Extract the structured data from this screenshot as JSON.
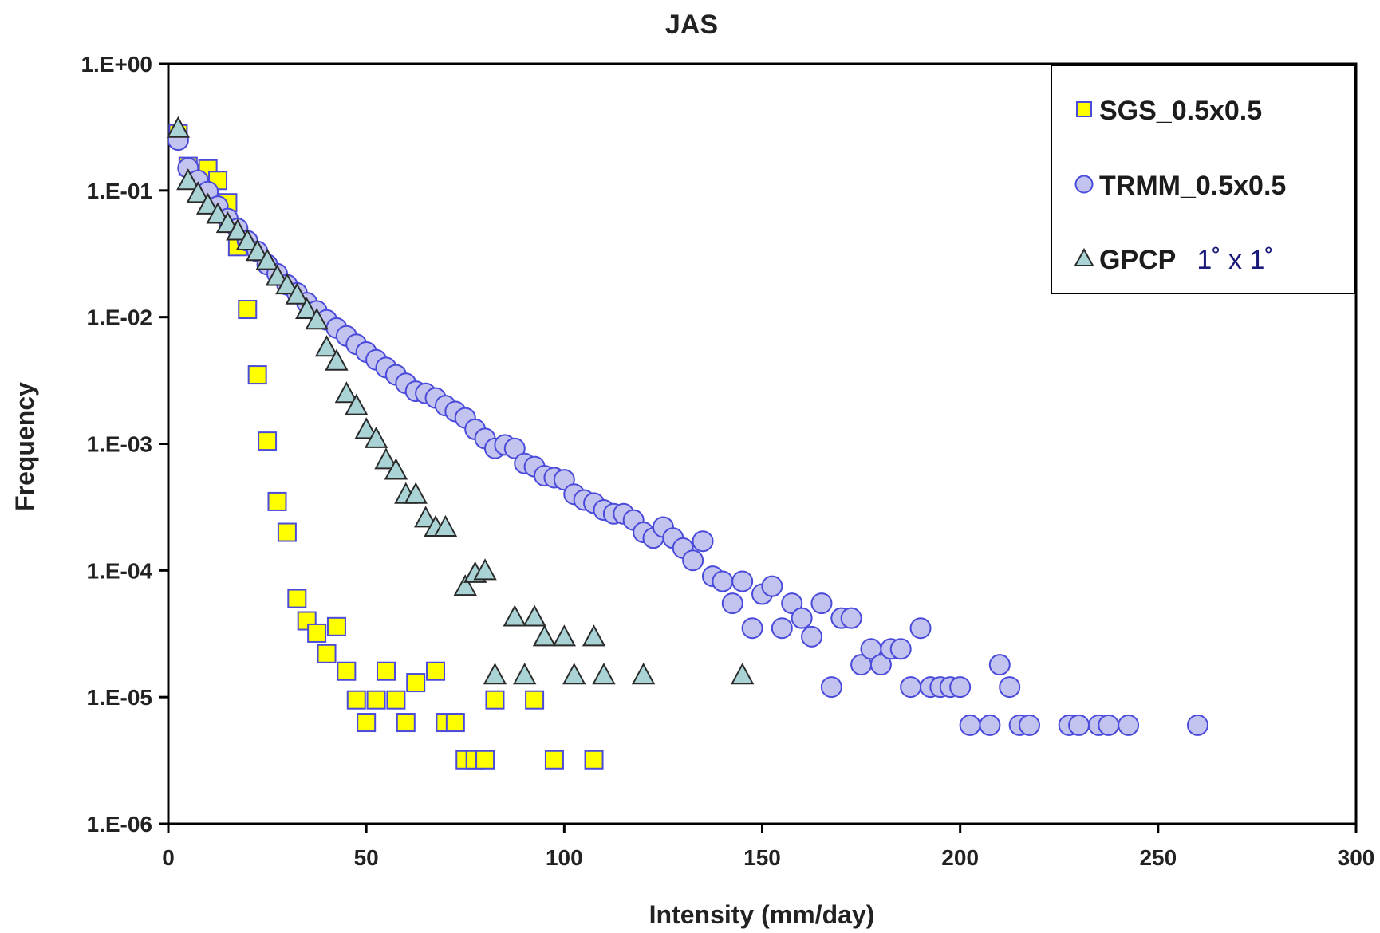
{
  "chart_data": {
    "type": "scatter",
    "title": "JAS",
    "xlabel": "Intensity (mm/day)",
    "ylabel": "Frequency",
    "xlim": [
      0,
      300
    ],
    "ylim": [
      1e-06,
      1
    ],
    "yscale": "log",
    "grid": false,
    "legend_position": "top-right",
    "x_ticks": [
      0,
      50,
      100,
      150,
      200,
      250,
      300
    ],
    "x_tick_labels": [
      "0",
      "50",
      "100",
      "150",
      "200",
      "250",
      "300"
    ],
    "y_ticks": [
      1,
      0.1,
      0.01,
      0.001,
      0.0001,
      1e-05,
      1e-06
    ],
    "y_tick_labels": [
      "1.E+00",
      "1.E-01",
      "1.E-02",
      "1.E-03",
      "1.E-04",
      "1.E-05",
      "1.E-06"
    ],
    "series": [
      {
        "name": "SGS_0.5x0.5",
        "marker": "square",
        "fill": "#ffff00",
        "stroke": "#4a4adb",
        "points": [
          [
            2.5,
            0.28
          ],
          [
            5,
            0.155
          ],
          [
            10,
            0.148
          ],
          [
            12.5,
            0.12
          ],
          [
            15,
            0.08
          ],
          [
            17.5,
            0.036
          ],
          [
            20,
            0.0115
          ],
          [
            22.5,
            0.0035
          ],
          [
            25,
            0.00105
          ],
          [
            27.5,
            0.00035
          ],
          [
            30,
            0.0002
          ],
          [
            32.5,
            6e-05
          ],
          [
            35,
            4e-05
          ],
          [
            37.5,
            3.2e-05
          ],
          [
            40,
            2.2e-05
          ],
          [
            42.5,
            3.6e-05
          ],
          [
            45,
            1.6e-05
          ],
          [
            47.5,
            9.5e-06
          ],
          [
            50,
            6.3e-06
          ],
          [
            52.5,
            9.5e-06
          ],
          [
            55,
            1.6e-05
          ],
          [
            57.5,
            9.5e-06
          ],
          [
            60,
            6.3e-06
          ],
          [
            62.5,
            1.3e-05
          ],
          [
            67.5,
            1.6e-05
          ],
          [
            70,
            6.3e-06
          ],
          [
            72.5,
            6.3e-06
          ],
          [
            75,
            3.2e-06
          ],
          [
            77.5,
            3.2e-06
          ],
          [
            80,
            3.2e-06
          ],
          [
            82.5,
            9.5e-06
          ],
          [
            92.5,
            9.5e-06
          ],
          [
            97.5,
            3.2e-06
          ],
          [
            107.5,
            3.2e-06
          ]
        ]
      },
      {
        "name": "TRMM_0.5x0.5",
        "marker": "circle",
        "fill": "#c3c3ef",
        "stroke": "#4a4adb",
        "points": [
          [
            2.5,
            0.25
          ],
          [
            5,
            0.15
          ],
          [
            7.5,
            0.12
          ],
          [
            10,
            0.098
          ],
          [
            12.5,
            0.075
          ],
          [
            15,
            0.06
          ],
          [
            17.5,
            0.05
          ],
          [
            20,
            0.04
          ],
          [
            22.5,
            0.033
          ],
          [
            25,
            0.026
          ],
          [
            27.5,
            0.022
          ],
          [
            30,
            0.018
          ],
          [
            32.5,
            0.0155
          ],
          [
            35,
            0.013
          ],
          [
            37.5,
            0.0112
          ],
          [
            40,
            0.0095
          ],
          [
            42.5,
            0.0082
          ],
          [
            45,
            0.0071
          ],
          [
            47.5,
            0.0061
          ],
          [
            50,
            0.0053
          ],
          [
            52.5,
            0.0046
          ],
          [
            55,
            0.004
          ],
          [
            57.5,
            0.0035
          ],
          [
            60,
            0.003
          ],
          [
            62.5,
            0.0026
          ],
          [
            65,
            0.0025
          ],
          [
            67.5,
            0.0023
          ],
          [
            70,
            0.002
          ],
          [
            72.5,
            0.0018
          ],
          [
            75,
            0.0016
          ],
          [
            77.5,
            0.0013
          ],
          [
            80,
            0.0011
          ],
          [
            82.5,
            0.00092
          ],
          [
            85,
            0.00098
          ],
          [
            87.5,
            0.00092
          ],
          [
            90,
            0.0007
          ],
          [
            92.5,
            0.00066
          ],
          [
            95,
            0.00056
          ],
          [
            97.5,
            0.00054
          ],
          [
            100,
            0.00052
          ],
          [
            102.5,
            0.0004
          ],
          [
            105,
            0.00036
          ],
          [
            107.5,
            0.00034
          ],
          [
            110,
            0.0003
          ],
          [
            112.5,
            0.00028
          ],
          [
            115,
            0.00028
          ],
          [
            117.5,
            0.00025
          ],
          [
            120,
            0.0002
          ],
          [
            122.5,
            0.00018
          ],
          [
            125,
            0.00022
          ],
          [
            127.5,
            0.00018
          ],
          [
            130,
            0.00015
          ],
          [
            132.5,
            0.00012
          ],
          [
            135,
            0.00017
          ],
          [
            137.5,
            9e-05
          ],
          [
            140,
            8.2e-05
          ],
          [
            142.5,
            5.5e-05
          ],
          [
            145,
            8.2e-05
          ],
          [
            147.5,
            3.5e-05
          ],
          [
            150,
            6.5e-05
          ],
          [
            152.5,
            7.5e-05
          ],
          [
            155,
            3.5e-05
          ],
          [
            157.5,
            5.5e-05
          ],
          [
            160,
            4.2e-05
          ],
          [
            162.5,
            3e-05
          ],
          [
            165,
            5.5e-05
          ],
          [
            167.5,
            1.2e-05
          ],
          [
            170,
            4.2e-05
          ],
          [
            172.5,
            4.2e-05
          ],
          [
            175,
            1.8e-05
          ],
          [
            177.5,
            2.4e-05
          ],
          [
            180,
            1.8e-05
          ],
          [
            182.5,
            2.4e-05
          ],
          [
            185,
            2.4e-05
          ],
          [
            187.5,
            1.2e-05
          ],
          [
            190,
            3.5e-05
          ],
          [
            192.5,
            1.2e-05
          ],
          [
            195,
            1.2e-05
          ],
          [
            197.5,
            1.2e-05
          ],
          [
            200,
            1.2e-05
          ],
          [
            202.5,
            6e-06
          ],
          [
            207.5,
            6e-06
          ],
          [
            210,
            1.8e-05
          ],
          [
            212.5,
            1.2e-05
          ],
          [
            215,
            6e-06
          ],
          [
            217.5,
            6e-06
          ],
          [
            227.5,
            6e-06
          ],
          [
            230,
            6e-06
          ],
          [
            235,
            6e-06
          ],
          [
            237.5,
            6e-06
          ],
          [
            242.5,
            6e-06
          ],
          [
            260,
            6e-06
          ]
        ]
      },
      {
        "name": "GPCP",
        "name_suffix": "1˚ x 1˚",
        "name_suffix_color": "#1a1a7a",
        "marker": "triangle",
        "fill": "#a9d3d5",
        "stroke": "#2a2a2a",
        "points": [
          [
            2.5,
            0.31
          ],
          [
            5,
            0.12
          ],
          [
            7.5,
            0.095
          ],
          [
            10,
            0.077
          ],
          [
            12.5,
            0.065
          ],
          [
            15,
            0.055
          ],
          [
            17.5,
            0.048
          ],
          [
            20,
            0.04
          ],
          [
            22.5,
            0.033
          ],
          [
            25,
            0.028
          ],
          [
            27.5,
            0.021
          ],
          [
            30,
            0.018
          ],
          [
            32.5,
            0.015
          ],
          [
            35,
            0.0115
          ],
          [
            37.5,
            0.0095
          ],
          [
            40,
            0.0058
          ],
          [
            42.5,
            0.0045
          ],
          [
            45,
            0.0025
          ],
          [
            47.5,
            0.002
          ],
          [
            50,
            0.0013
          ],
          [
            52.5,
            0.0011
          ],
          [
            55,
            0.00075
          ],
          [
            57.5,
            0.00062
          ],
          [
            60,
            0.0004
          ],
          [
            62.5,
            0.0004
          ],
          [
            65,
            0.00026
          ],
          [
            67.5,
            0.00022
          ],
          [
            70,
            0.00022
          ],
          [
            75,
            7.5e-05
          ],
          [
            77.5,
            9.5e-05
          ],
          [
            80,
            0.0001
          ],
          [
            82.5,
            1.5e-05
          ],
          [
            87.5,
            4.3e-05
          ],
          [
            90,
            1.5e-05
          ],
          [
            92.5,
            4.3e-05
          ],
          [
            95,
            3e-05
          ],
          [
            100,
            3e-05
          ],
          [
            102.5,
            1.5e-05
          ],
          [
            107.5,
            3e-05
          ],
          [
            110,
            1.5e-05
          ],
          [
            120,
            1.5e-05
          ],
          [
            145,
            1.5e-05
          ]
        ]
      }
    ]
  }
}
